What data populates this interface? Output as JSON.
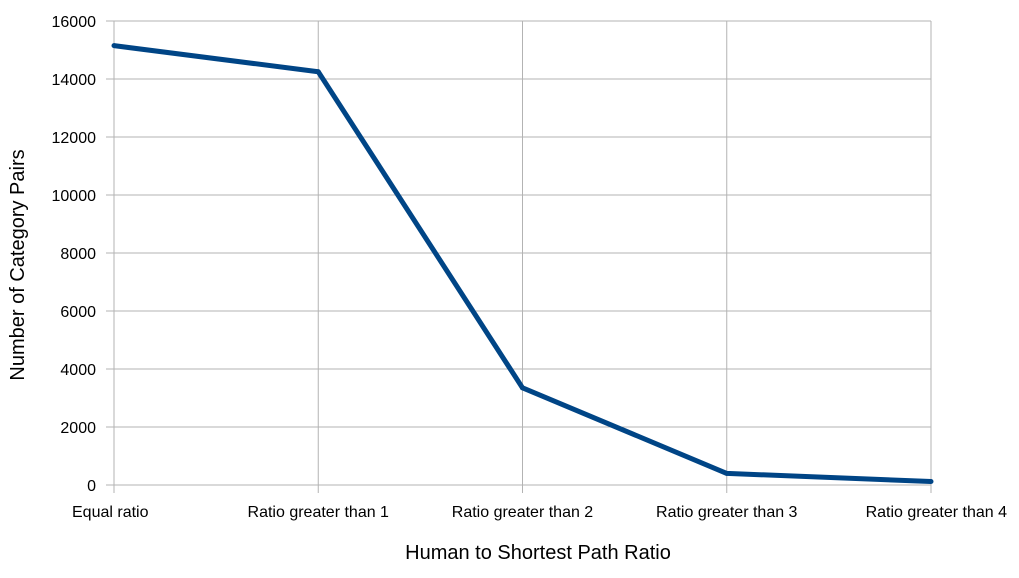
{
  "chart_data": {
    "type": "line",
    "title": "",
    "xlabel": "Human to Shortest Path Ratio",
    "ylabel": "Number of Category Pairs",
    "categories": [
      "Equal ratio",
      "Ratio greater than 1",
      "Ratio greater than 2",
      "Ratio greater than 3",
      "Ratio greater than 4"
    ],
    "series": [
      {
        "values": [
          15150,
          14250,
          3350,
          400,
          120
        ],
        "color": "#004586"
      }
    ],
    "ylim": [
      0,
      16000
    ],
    "yticks": [
      0,
      2000,
      4000,
      6000,
      8000,
      10000,
      12000,
      14000,
      16000
    ],
    "grid": true,
    "legend": "none"
  }
}
